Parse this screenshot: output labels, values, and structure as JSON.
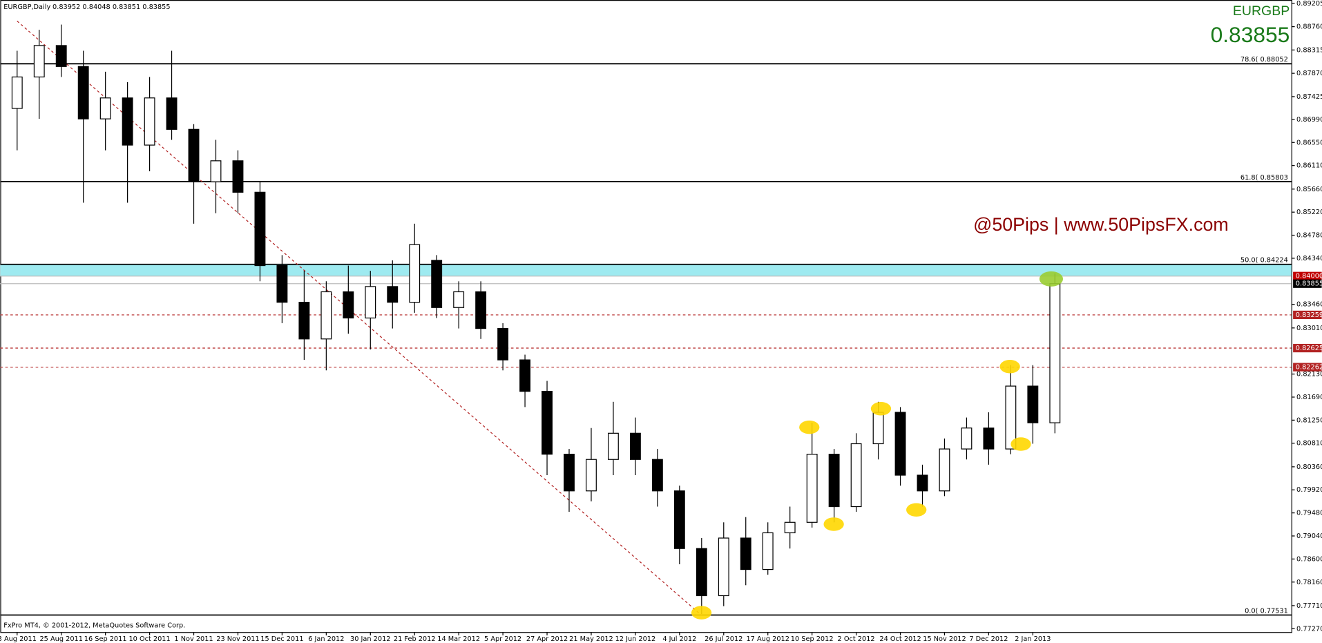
{
  "chart_data": {
    "type": "candlestick",
    "title": "EURGBP,Daily",
    "ohlc_header": "0.83952 0.84048 0.83851 0.83855",
    "symbol": "EURGBP",
    "last_price": "0.83855",
    "watermark": "@50Pips | www.50PipsFX.com",
    "footer": "FxPro MT4, © 2001-2012, MetaQuotes Software Corp.",
    "up_color": "#ffffff",
    "down_color": "#000000",
    "categories": [
      "3 Aug 2011",
      null,
      "25 Aug 2011",
      null,
      "16 Sep 2011",
      null,
      "10 Oct 2011",
      null,
      "1 Nov 2011",
      null,
      "23 Nov 2011",
      null,
      "15 Dec 2011",
      null,
      "6 Jan 2012",
      null,
      "30 Jan 2012",
      null,
      "21 Feb 2012",
      null,
      "14 Mar 2012",
      null,
      "5 Apr 2012",
      null,
      "27 Apr 2012",
      null,
      "21 May 2012",
      null,
      "12 Jun 2012",
      null,
      "4 Jul 2012",
      null,
      "26 Jul 2012",
      null,
      "17 Aug 2012",
      null,
      "10 Sep 2012",
      null,
      "2 Oct 2012",
      null,
      "24 Oct 2012",
      null,
      "15 Nov 2012",
      null,
      "7 Dec 2012",
      null,
      "2 Jan 2013",
      null
    ],
    "open": [
      0.872,
      0.878,
      0.884,
      0.88,
      0.87,
      0.874,
      0.865,
      0.874,
      0.868,
      0.858,
      0.862,
      0.856,
      0.842,
      0.835,
      0.828,
      0.837,
      0.832,
      0.838,
      0.835,
      0.843,
      0.834,
      0.837,
      0.83,
      0.824,
      0.818,
      0.806,
      0.799,
      0.805,
      0.81,
      0.805,
      0.799,
      0.788,
      0.779,
      0.79,
      0.784,
      0.791,
      0.793,
      0.806,
      0.796,
      0.808,
      0.814,
      0.802,
      0.799,
      0.807,
      0.811,
      0.807,
      0.819,
      0.812
    ],
    "high": [
      0.883,
      0.887,
      0.888,
      0.883,
      0.879,
      0.877,
      0.878,
      0.883,
      0.869,
      0.866,
      0.864,
      0.858,
      0.844,
      0.841,
      0.839,
      0.842,
      0.841,
      0.843,
      0.85,
      0.844,
      0.839,
      0.839,
      0.831,
      0.825,
      0.82,
      0.807,
      0.811,
      0.816,
      0.813,
      0.807,
      0.8,
      0.79,
      0.793,
      0.794,
      0.793,
      0.796,
      0.812,
      0.807,
      0.81,
      0.816,
      0.815,
      0.804,
      0.809,
      0.813,
      0.814,
      0.823,
      0.823,
      0.8405
    ],
    "low": [
      0.864,
      0.87,
      0.878,
      0.854,
      0.864,
      0.854,
      0.86,
      0.866,
      0.85,
      0.852,
      0.852,
      0.839,
      0.831,
      0.824,
      0.822,
      0.829,
      0.826,
      0.83,
      0.833,
      0.832,
      0.83,
      0.828,
      0.822,
      0.815,
      0.802,
      0.795,
      0.797,
      0.802,
      0.802,
      0.796,
      0.785,
      0.7755,
      0.777,
      0.781,
      0.783,
      0.788,
      0.792,
      0.793,
      0.795,
      0.805,
      0.8,
      0.796,
      0.798,
      0.805,
      0.804,
      0.806,
      0.808,
      0.81
    ],
    "close": [
      0.878,
      0.884,
      0.88,
      0.87,
      0.874,
      0.865,
      0.874,
      0.868,
      0.858,
      0.862,
      0.856,
      0.842,
      0.835,
      0.828,
      0.837,
      0.832,
      0.838,
      0.835,
      0.846,
      0.834,
      0.837,
      0.83,
      0.824,
      0.818,
      0.806,
      0.799,
      0.805,
      0.81,
      0.805,
      0.799,
      0.788,
      0.779,
      0.79,
      0.784,
      0.791,
      0.793,
      0.806,
      0.796,
      0.808,
      0.814,
      0.802,
      0.799,
      0.807,
      0.811,
      0.807,
      0.819,
      0.812,
      0.83855
    ],
    "ylim": [
      0.77206,
      0.89269
    ],
    "yticks": [
      {
        "value": 0.89205,
        "label": "0.89205"
      },
      {
        "value": 0.8876,
        "label": "0.88760"
      },
      {
        "value": 0.88315,
        "label": "0.88315"
      },
      {
        "value": 0.8787,
        "label": "0.87870"
      },
      {
        "value": 0.87425,
        "label": "0.87425"
      },
      {
        "value": 0.8699,
        "label": "0.86990"
      },
      {
        "value": 0.8655,
        "label": "0.86550"
      },
      {
        "value": 0.8611,
        "label": "0.86110"
      },
      {
        "value": 0.8566,
        "label": "0.85660"
      },
      {
        "value": 0.8522,
        "label": "0.85220"
      },
      {
        "value": 0.8478,
        "label": "0.84780"
      },
      {
        "value": 0.8434,
        "label": "0.84340"
      },
      {
        "value": 0.8346,
        "label": "0.83460"
      },
      {
        "value": 0.8301,
        "label": "0.83010"
      },
      {
        "value": 0.8213,
        "label": "0.82130"
      },
      {
        "value": 0.8169,
        "label": "0.81690"
      },
      {
        "value": 0.8125,
        "label": "0.81250"
      },
      {
        "value": 0.8081,
        "label": "0.80810"
      },
      {
        "value": 0.8036,
        "label": "0.80360"
      },
      {
        "value": 0.7992,
        "label": "0.79920"
      },
      {
        "value": 0.7948,
        "label": "0.79480"
      },
      {
        "value": 0.7904,
        "label": "0.79040"
      },
      {
        "value": 0.786,
        "label": "0.78600"
      },
      {
        "value": 0.7816,
        "label": "0.78160"
      },
      {
        "value": 0.7771,
        "label": "0.77710"
      },
      {
        "value": 0.7727,
        "label": "0.77270"
      }
    ],
    "fib_levels": [
      {
        "value": 0.88052,
        "label": "78.6( 0.88052"
      },
      {
        "value": 0.85803,
        "label": "61.8( 0.85803"
      },
      {
        "value": 0.84224,
        "label": "50.0( 0.84224"
      },
      {
        "value": 0.77531,
        "label": "0.0( 0.77531"
      }
    ],
    "zone": [
      0.84,
      0.84224
    ],
    "zone_color": "#9eeaf0",
    "dashed_levels": [
      {
        "value": 0.83259,
        "label": "0.83259"
      },
      {
        "value": 0.82625,
        "label": "0.82625"
      },
      {
        "value": 0.82262,
        "label": "0.82262"
      }
    ],
    "dashed_color": "#b22222",
    "price_tags": [
      {
        "value": 0.84,
        "label": "0.84000",
        "color": "#c00000"
      },
      {
        "value": 0.83855,
        "label": "0.83855",
        "color": "#000000"
      }
    ]
  }
}
